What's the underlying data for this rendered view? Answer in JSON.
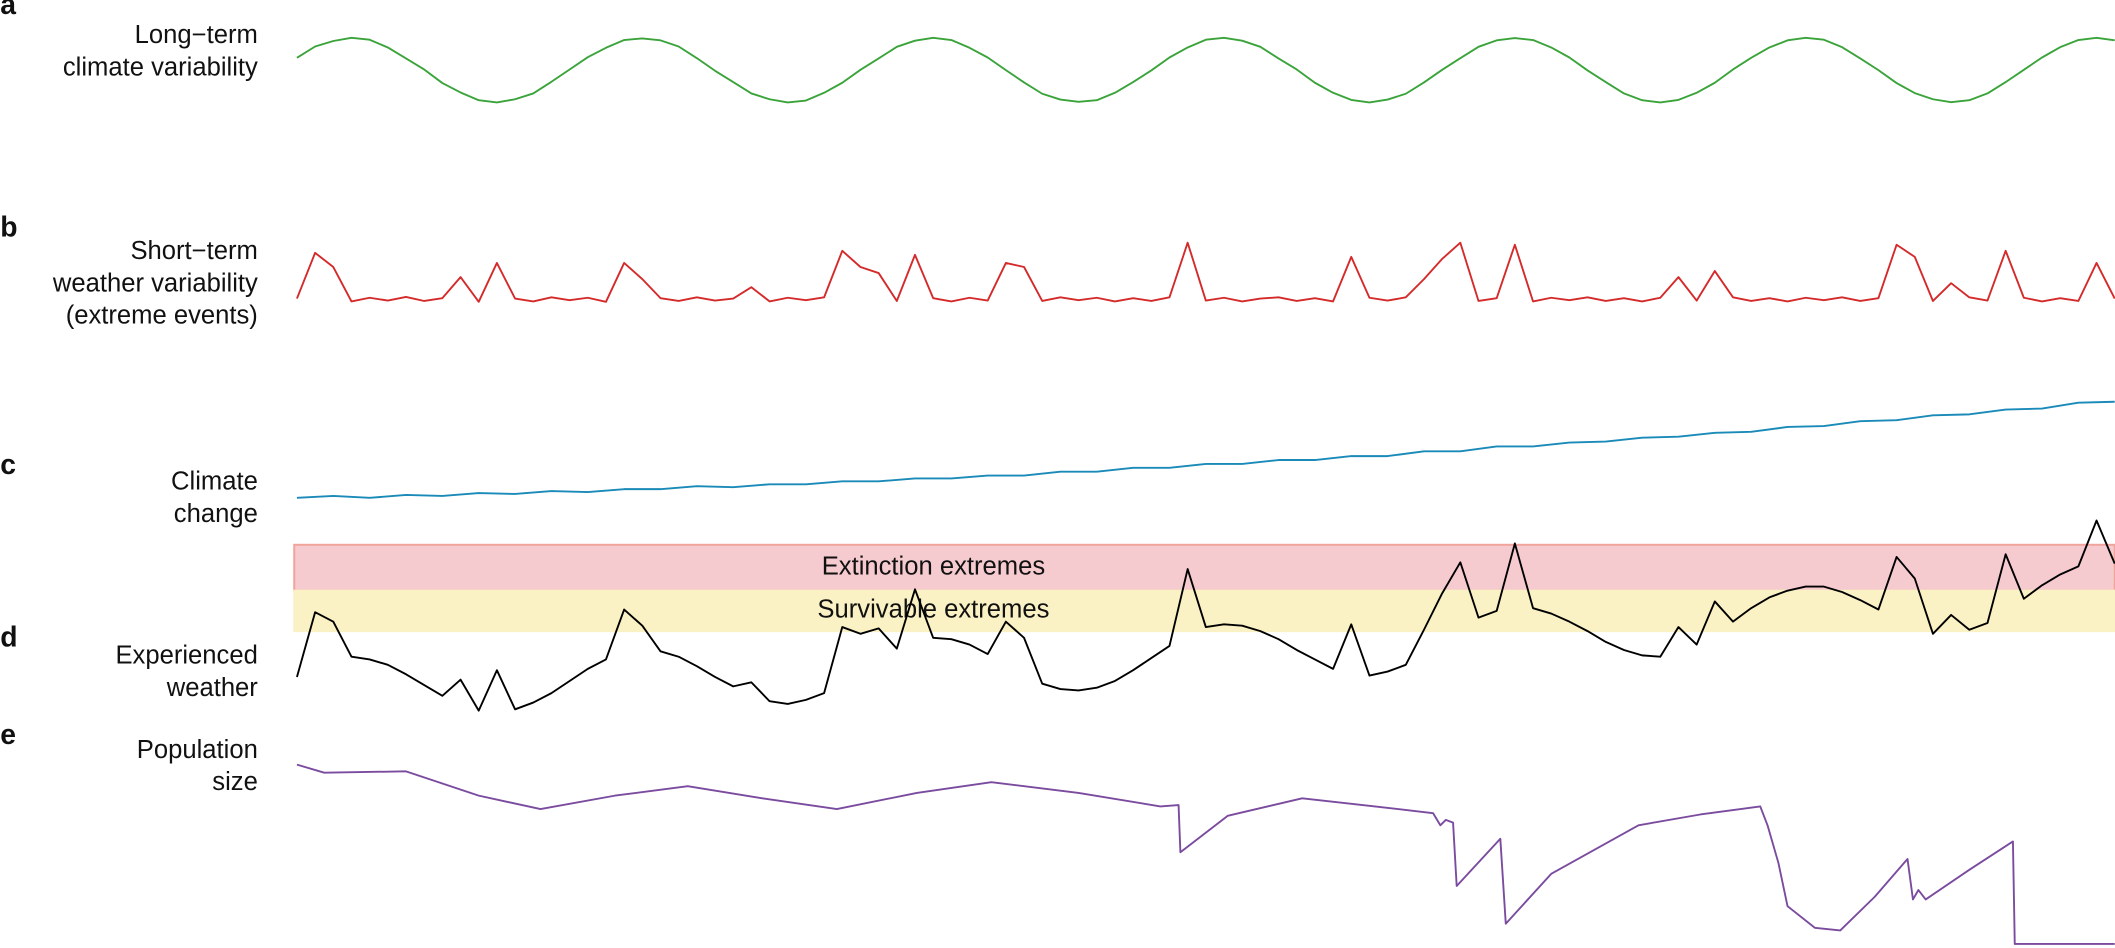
{
  "chart_data": [
    {
      "type": "line",
      "label": "a",
      "title": [
        "Long−term",
        "climate variability"
      ],
      "color": "#3aa33a",
      "xlim": [
        0,
        100
      ],
      "ylim": [
        -1.5,
        1.5
      ],
      "x": [
        0,
        1,
        2,
        3,
        4,
        5,
        6,
        7,
        8,
        9,
        10,
        11,
        12,
        13,
        14,
        15,
        16,
        17,
        18,
        19,
        20,
        21,
        22,
        23,
        24,
        25,
        26,
        27,
        28,
        29,
        30,
        31,
        32,
        33,
        34,
        35,
        36,
        37,
        38,
        39,
        40,
        41,
        42,
        43,
        44,
        45,
        46,
        47,
        48,
        49,
        50,
        51,
        52,
        53,
        54,
        55,
        56,
        57,
        58,
        59,
        60,
        61,
        62,
        63,
        64,
        65,
        66,
        67,
        68,
        69,
        70,
        71,
        72,
        73,
        74,
        75,
        76,
        77,
        78,
        79,
        80,
        81,
        82,
        83,
        84,
        85,
        86,
        87,
        88,
        89,
        90,
        91,
        92,
        93,
        94,
        95,
        96,
        97,
        98,
        99,
        100
      ],
      "values": [
        0.38,
        0.73,
        0.9,
        1,
        0.94,
        0.7,
        0.36,
        0.02,
        -0.4,
        -0.69,
        -0.93,
        -1,
        -0.9,
        -0.72,
        -0.36,
        0.02,
        0.4,
        0.69,
        0.93,
        0.98,
        0.92,
        0.73,
        0.37,
        -0.02,
        -0.37,
        -0.72,
        -0.9,
        -1,
        -0.94,
        -0.7,
        -0.39,
        0.01,
        0.36,
        0.72,
        0.91,
        1,
        0.93,
        0.69,
        0.39,
        0,
        -0.38,
        -0.73,
        -0.91,
        -0.98,
        -0.93,
        -0.7,
        -0.37,
        -0.01,
        0.39,
        0.7,
        0.94,
        1,
        0.91,
        0.72,
        0.36,
        0.02,
        -0.39,
        -0.7,
        -0.92,
        -1,
        -0.91,
        -0.73,
        -0.38,
        0.01,
        0.37,
        0.72,
        0.92,
        0.99,
        0.93,
        0.7,
        0.39,
        -0.01,
        -0.37,
        -0.72,
        -0.93,
        -1,
        -0.92,
        -0.7,
        -0.39,
        0.02,
        0.38,
        0.7,
        0.92,
        1,
        0.94,
        0.71,
        0.36,
        0,
        -0.4,
        -0.71,
        -0.9,
        -0.99,
        -0.93,
        -0.72,
        -0.37,
        0.01,
        0.39,
        0.71,
        0.93,
        1,
        0.92
      ]
    },
    {
      "type": "line",
      "label": "b",
      "title": [
        "Short−term",
        "weather variability",
        "(extreme events)"
      ],
      "color": "#d42a2a",
      "xlim": [
        0,
        100
      ],
      "ylim": [
        -0.5,
        1.6
      ],
      "x": [
        0,
        1,
        2,
        3,
        4,
        5,
        6,
        7,
        8,
        9,
        10,
        11,
        12,
        13,
        14,
        15,
        16,
        17,
        18,
        19,
        20,
        21,
        22,
        23,
        24,
        25,
        26,
        27,
        28,
        29,
        30,
        31,
        32,
        33,
        34,
        35,
        36,
        37,
        38,
        39,
        40,
        41,
        42,
        43,
        44,
        45,
        46,
        47,
        48,
        49,
        50,
        51,
        52,
        53,
        54,
        55,
        56,
        57,
        58,
        59,
        60,
        61,
        62,
        63,
        64,
        65,
        66,
        67,
        68,
        69,
        70,
        71,
        72,
        73,
        74,
        75,
        76,
        77,
        78,
        79,
        80,
        81,
        82,
        83,
        84,
        85,
        86,
        87,
        88,
        89,
        90,
        91,
        92,
        93,
        94,
        95,
        96,
        97,
        98,
        99,
        100
      ],
      "values": [
        0.02,
        1.15,
        0.8,
        -0.05,
        0.04,
        -0.03,
        0.06,
        -0.04,
        0.03,
        0.55,
        -0.06,
        0.9,
        0.02,
        -0.05,
        0.05,
        -0.02,
        0.04,
        -0.06,
        0.9,
        0.5,
        0.03,
        -0.04,
        0.05,
        -0.03,
        0.02,
        0.3,
        -0.05,
        0.04,
        -0.02,
        0.05,
        1.2,
        0.8,
        0.65,
        -0.04,
        1.1,
        0.03,
        -0.05,
        0.04,
        -0.03,
        0.9,
        0.8,
        -0.04,
        0.05,
        -0.02,
        0.04,
        -0.05,
        0.03,
        -0.04,
        0.05,
        1.4,
        -0.03,
        0.04,
        -0.05,
        0.02,
        0.05,
        -0.04,
        0.03,
        -0.05,
        1.05,
        0.04,
        -0.03,
        0.05,
        0.5,
        1.0,
        1.4,
        -0.04,
        0.03,
        1.35,
        -0.05,
        0.04,
        -0.02,
        0.05,
        -0.04,
        0.03,
        -0.05,
        0.04,
        0.55,
        -0.03,
        0.7,
        0.05,
        -0.04,
        0.03,
        -0.05,
        0.04,
        -0.02,
        0.05,
        -0.04,
        0.03,
        1.35,
        1.05,
        -0.04,
        0.4,
        0.05,
        -0.03,
        1.2,
        0.04,
        -0.05,
        0.03,
        -0.04,
        0.9,
        0.02
      ]
    },
    {
      "type": "line",
      "label": "c",
      "title": [
        "Climate",
        "change"
      ],
      "color": "#1a8ab8",
      "xlim": [
        0,
        100
      ],
      "ylim": [
        -0.15,
        1.1
      ],
      "x": [
        0,
        2,
        4,
        6,
        8,
        10,
        12,
        14,
        16,
        18,
        20,
        22,
        24,
        26,
        28,
        30,
        32,
        34,
        36,
        38,
        40,
        42,
        44,
        46,
        48,
        50,
        52,
        54,
        56,
        58,
        60,
        62,
        64,
        66,
        68,
        70,
        72,
        74,
        76,
        78,
        80,
        82,
        84,
        86,
        88,
        90,
        92,
        94,
        96,
        98,
        100
      ],
      "values": [
        0,
        0.02,
        0,
        0.03,
        0.02,
        0.05,
        0.04,
        0.07,
        0.06,
        0.09,
        0.09,
        0.12,
        0.11,
        0.14,
        0.14,
        0.17,
        0.17,
        0.2,
        0.2,
        0.23,
        0.23,
        0.27,
        0.27,
        0.31,
        0.31,
        0.35,
        0.35,
        0.39,
        0.39,
        0.43,
        0.43,
        0.48,
        0.48,
        0.53,
        0.53,
        0.57,
        0.58,
        0.62,
        0.63,
        0.67,
        0.68,
        0.73,
        0.74,
        0.79,
        0.8,
        0.85,
        0.86,
        0.91,
        0.92,
        0.98,
        0.99
      ]
    },
    {
      "type": "line",
      "label": "d",
      "title": [
        "Experienced",
        "weather"
      ],
      "color": "#000000",
      "xlim": [
        0,
        100
      ],
      "ylim": [
        -10,
        160
      ],
      "bands": [
        {
          "label": "Extinction extremes",
          "range": [
            102,
            136
          ],
          "color": "#f6cbd0",
          "edge": "#f0a49c"
        },
        {
          "label": "Survivable extremes",
          "range": [
            72,
            102
          ],
          "color": "#faf1c4",
          "edge": "#faf1c4"
        }
      ],
      "x": [
        0,
        1,
        2,
        3,
        4,
        5,
        6,
        7,
        8,
        9,
        10,
        11,
        12,
        13,
        14,
        15,
        16,
        17,
        18,
        19,
        20,
        21,
        22,
        23,
        24,
        25,
        26,
        27,
        28,
        29,
        30,
        31,
        32,
        33,
        34,
        35,
        36,
        37,
        38,
        39,
        40,
        41,
        42,
        43,
        44,
        45,
        46,
        47,
        48,
        49,
        50,
        51,
        52,
        53,
        54,
        55,
        56,
        57,
        58,
        59,
        60,
        61,
        62,
        63,
        64,
        65,
        66,
        67,
        68,
        69,
        70,
        71,
        72,
        73,
        74,
        75,
        76,
        77,
        78,
        79,
        80,
        81,
        82,
        83,
        84,
        85,
        86,
        87,
        88,
        89,
        90,
        91,
        92,
        93,
        94,
        95,
        96,
        97,
        98,
        99,
        100
      ],
      "values": [
        38,
        86,
        79,
        53,
        51,
        47,
        40,
        32,
        24,
        36,
        13,
        43,
        14,
        19,
        26,
        35,
        44,
        51,
        88,
        76,
        57,
        53,
        46,
        38,
        31,
        34,
        20,
        18,
        21,
        26,
        75,
        70,
        74,
        59,
        103,
        67,
        66,
        62,
        55,
        79,
        67,
        33,
        29,
        28,
        30,
        35,
        43,
        52,
        61,
        118,
        75,
        77,
        76,
        72,
        66,
        58,
        51,
        44,
        77,
        39,
        42,
        47,
        73,
        100,
        123,
        82,
        87,
        137,
        89,
        85,
        79,
        72,
        64,
        58,
        54,
        53,
        75,
        62,
        94,
        79,
        89,
        97,
        102,
        105,
        105,
        101,
        95,
        88,
        127,
        111,
        70,
        84,
        73,
        78,
        129,
        96,
        106,
        114,
        120,
        154,
        122
      ]
    },
    {
      "type": "line",
      "label": "e",
      "title": [
        "Population",
        "size"
      ],
      "color": "#7a4b9e",
      "xlim": [
        0,
        100
      ],
      "ylim": [
        0,
        140
      ],
      "x": [
        0,
        1.5,
        6,
        10,
        13.4,
        17.5,
        21.5,
        25.6,
        29.7,
        34.1,
        38.2,
        43,
        47.5,
        48.5,
        48.6,
        51.2,
        55.3,
        59.3,
        62.5,
        62.9,
        63.2,
        63.6,
        63.8,
        66.2,
        66.5,
        69,
        73.8,
        77.2,
        80.5,
        80.9,
        81.5,
        82,
        83.5,
        84.9,
        86.8,
        88.6,
        88.9,
        89.2,
        89.6,
        92,
        94.4,
        94.5,
        100
      ],
      "values": [
        136,
        130,
        131,
        113,
        103,
        113,
        120,
        111,
        103,
        115,
        123,
        115,
        105,
        106,
        71,
        98,
        111,
        105,
        100,
        91,
        95,
        93,
        46,
        81,
        18,
        55,
        91,
        99,
        105,
        91,
        63,
        31,
        15,
        13,
        38,
        66,
        36,
        43,
        36,
        58,
        79,
        3,
        3
      ]
    }
  ]
}
